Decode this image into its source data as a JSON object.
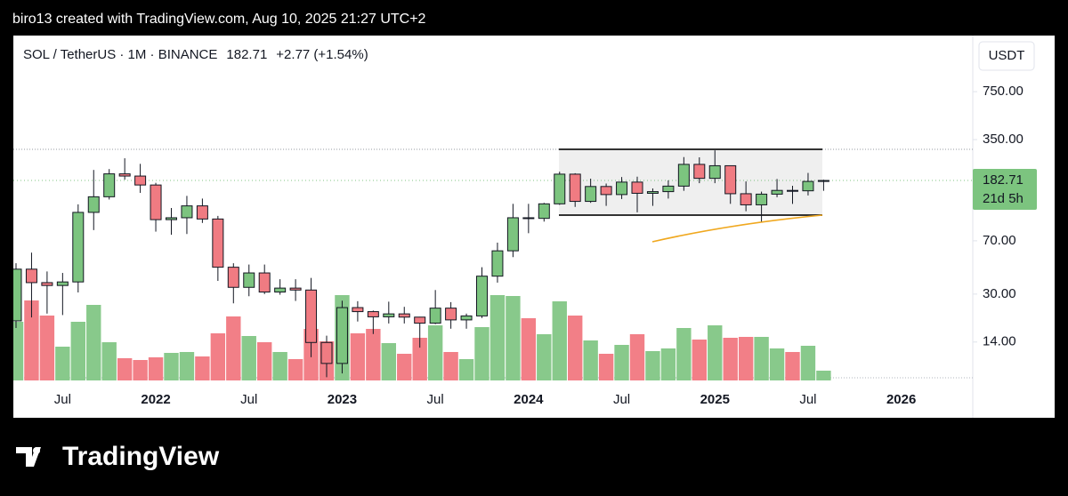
{
  "header": {
    "credit": "biro13 created with TradingView.com, Aug 10, 2025 21:27 UTC+2",
    "logo": "TradingView"
  },
  "chart_data": {
    "type": "candlestick",
    "title": "SOL / TetherUS · 1M · BINANCE",
    "change": "+2.77 (+1.54%)",
    "currency": "USDT",
    "countdown": "21d 5h",
    "log_scale": true,
    "categories": [
      null,
      null,
      null,
      "Jul",
      null,
      null,
      null,
      null,
      null,
      "2022",
      null,
      null,
      null,
      null,
      null,
      "Jul",
      null,
      null,
      null,
      null,
      null,
      "2023",
      null,
      null,
      null,
      null,
      null,
      "Jul",
      null,
      null,
      null,
      null,
      null,
      "2024",
      null,
      null,
      null,
      null,
      null,
      "Jul",
      null,
      null,
      null,
      null,
      null,
      "2025",
      null,
      null,
      null,
      null,
      null,
      "Jul",
      null,
      null,
      null,
      null,
      null,
      "2026"
    ],
    "open": [
      19.6,
      44.6,
      36,
      34.4,
      36.4,
      110,
      141,
      203,
      196,
      170,
      98,
      101,
      122,
      99,
      46,
      33.4,
      42,
      31,
      33,
      32,
      13.9,
      9.96,
      24.2,
      22.7,
      20.9,
      21.9,
      20.8,
      18.9,
      24,
      19.9,
      21.2,
      39.9,
      59.7,
      101,
      100,
      126,
      202,
      131,
      166,
      146,
      178,
      149,
      153,
      167,
      236,
      189,
      231,
      148,
      124,
      147,
      156,
      155,
      179.94,
      null,
      null,
      null,
      null,
      null
    ],
    "high": [
      49,
      58,
      43,
      42,
      125,
      216,
      219,
      260,
      238,
      176,
      118,
      143,
      137,
      104,
      49,
      48,
      48,
      38,
      38,
      38.8,
      15.5,
      27,
      26.8,
      23.1,
      26.6,
      24.5,
      20.9,
      32,
      26.4,
      22,
      46,
      68,
      126,
      126,
      128,
      210,
      205,
      188,
      174,
      193,
      194,
      161,
      183,
      265,
      264,
      295,
      232,
      180,
      153,
      187,
      168,
      206,
      185,
      null,
      null,
      null,
      null,
      null
    ],
    "low": [
      17.5,
      20.7,
      22,
      21.5,
      30.8,
      83,
      135,
      185,
      150,
      81,
      77,
      78,
      93,
      37,
      25.9,
      29,
      30,
      29.7,
      26.9,
      11,
      8,
      8.5,
      19.4,
      15.9,
      18.8,
      18.8,
      12.8,
      18.6,
      17.3,
      17.3,
      20.5,
      36,
      54,
      79,
      95,
      124,
      120,
      128,
      122,
      136,
      110,
      122,
      137,
      155,
      175,
      175,
      126,
      112,
      95,
      140,
      126,
      144,
      155,
      null,
      null,
      null,
      null,
      null
    ],
    "close": [
      44.6,
      36,
      34.4,
      36.4,
      110,
      141,
      203,
      196,
      170,
      98,
      101,
      122,
      99,
      46,
      33.4,
      42,
      31,
      33,
      32,
      13.9,
      9.96,
      24.2,
      22.7,
      20.9,
      21.9,
      20.8,
      18.9,
      24,
      19.9,
      21.2,
      39.9,
      59.7,
      101,
      100,
      126,
      202,
      131,
      166,
      146,
      178,
      149,
      153,
      167,
      236,
      189,
      231,
      148,
      124,
      147,
      156,
      155,
      179.94,
      182.71,
      null,
      null,
      null,
      null,
      null
    ],
    "volume": [
      66,
      90,
      73,
      38,
      66,
      85,
      43,
      25,
      23,
      26,
      31,
      32,
      27,
      53,
      72,
      50,
      43,
      32,
      24,
      58,
      44,
      96,
      53,
      58,
      42,
      30,
      48,
      62,
      32,
      24,
      60,
      96,
      95,
      70,
      52,
      89,
      73,
      45,
      30,
      40,
      52,
      33,
      36,
      59,
      46,
      62,
      48,
      49,
      49,
      36,
      32,
      39,
      11,
      null,
      null,
      null,
      null,
      null
    ],
    "up_color": "#7cc47f",
    "down_color": "#f07b82",
    "volume_up_color": "#88c98b",
    "volume_down_color": "#f27f87",
    "ylim": [
      7.6,
      1830
    ],
    "yticks": [
      {
        "value": 14,
        "label": "14.00"
      },
      {
        "value": 30,
        "label": "30.00"
      },
      {
        "value": 70,
        "label": "70.00"
      },
      {
        "value": 350,
        "label": "350.00"
      },
      {
        "value": 750,
        "label": "750.00"
      }
    ]
  }
}
